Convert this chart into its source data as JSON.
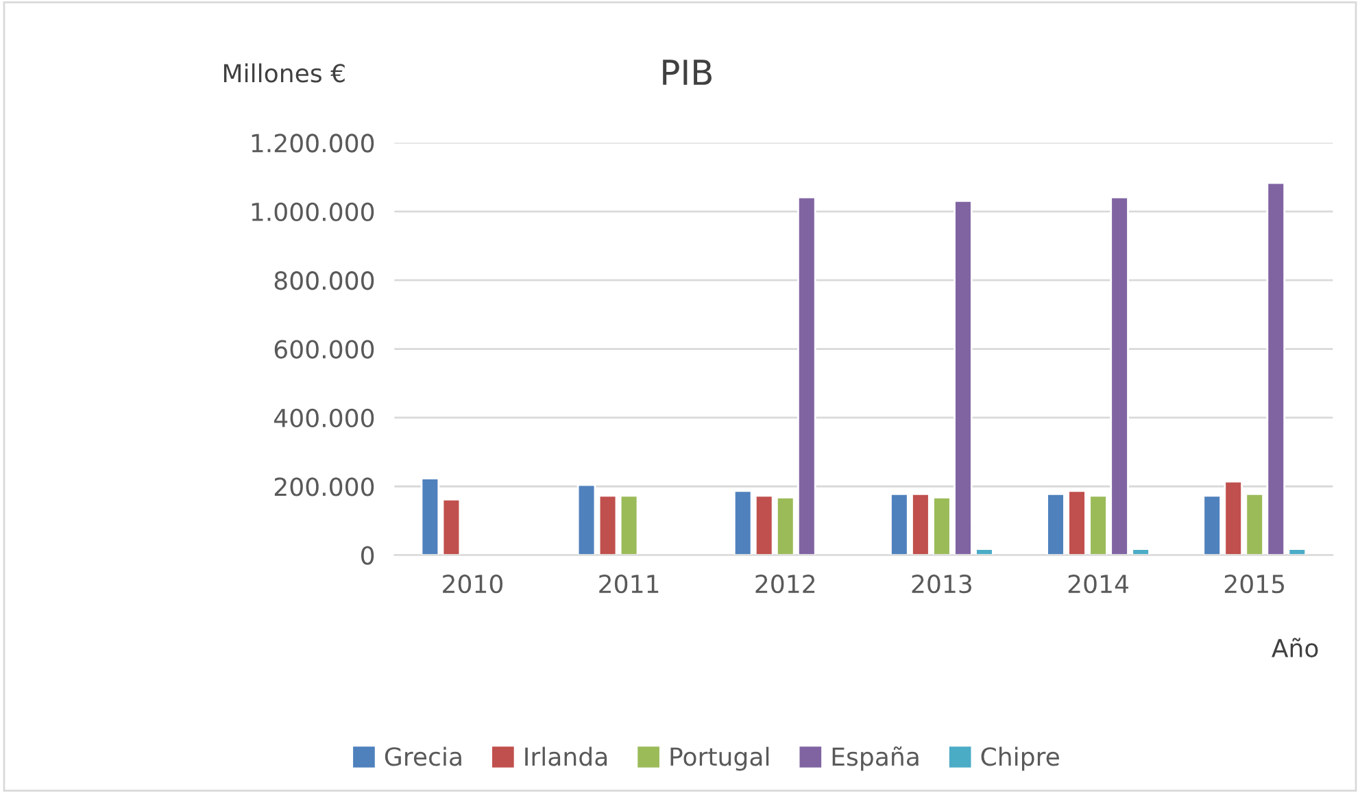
{
  "chart_data": {
    "type": "bar",
    "title": "PIB",
    "ylabel": "Millones €",
    "xlabel": "Año",
    "categories": [
      "2010",
      "2011",
      "2012",
      "2013",
      "2014",
      "2015"
    ],
    "series": [
      {
        "name": "Grecia",
        "color": "#4f81bd",
        "values": [
          223000,
          204000,
          187000,
          178000,
          178000,
          173000
        ]
      },
      {
        "name": "Irlanda",
        "color": "#c0504d",
        "values": [
          162000,
          173000,
          173000,
          178000,
          187000,
          214000
        ]
      },
      {
        "name": "Portugal",
        "color": "#9bbb59",
        "values": [
          null,
          173000,
          168000,
          168000,
          173000,
          178000
        ]
      },
      {
        "name": "España",
        "color": "#8064a2",
        "values": [
          null,
          null,
          1041000,
          1031000,
          1041000,
          1083000
        ]
      },
      {
        "name": "Chipre",
        "color": "#4bacc6",
        "values": [
          null,
          null,
          null,
          18000,
          18000,
          18000
        ]
      }
    ],
    "ylim": [
      0,
      1200000
    ],
    "yticks": [
      {
        "value": 0,
        "label": "0"
      },
      {
        "value": 200000,
        "label": "200.000"
      },
      {
        "value": 400000,
        "label": "400.000"
      },
      {
        "value": 600000,
        "label": "600.000"
      },
      {
        "value": 800000,
        "label": "800.000"
      },
      {
        "value": 1000000,
        "label": "1.000.000"
      },
      {
        "value": 1200000,
        "label": "1.200.000"
      }
    ],
    "grid": "y",
    "legend": "bottom"
  }
}
